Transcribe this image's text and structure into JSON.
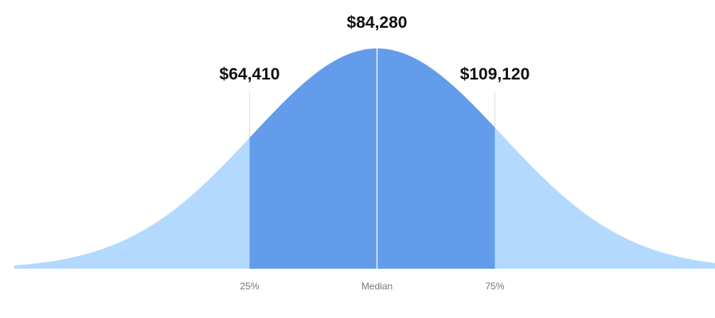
{
  "chart_data": {
    "type": "area",
    "title": "",
    "xlabel": "",
    "ylabel": "",
    "grid": false,
    "legend": "none",
    "distribution": "normal",
    "percentiles": [
      {
        "name": "25%",
        "label": "25%",
        "value": 64410,
        "value_label": "$64,410"
      },
      {
        "name": "median",
        "label": "Median",
        "value": 84280,
        "value_label": "$84,280"
      },
      {
        "name": "75%",
        "label": "75%",
        "value": 109120,
        "value_label": "$109,120"
      }
    ],
    "colors": {
      "tail_fill": "#B3DAFE",
      "core_fill": "#629CEB",
      "marker_line": "#FFFFFF",
      "guide_line": "#DDDDDD",
      "value_text": "#111111",
      "tick_text": "#777777"
    }
  }
}
